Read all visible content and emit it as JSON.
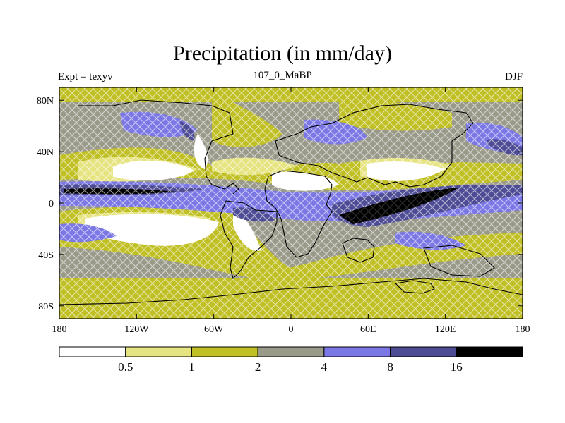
{
  "map": {
    "title": "Precipitation (in mm/day)",
    "left_label": "Expt = texyv",
    "center_label": "107_0_MaBP",
    "right_label": "DJF",
    "lon_labels": [
      "180",
      "120W",
      "60W",
      "0",
      "60E",
      "120E",
      "180"
    ],
    "lat_labels": [
      "80N",
      "40N",
      "0",
      "40S",
      "80S"
    ],
    "lon_values": [
      -180,
      -120,
      -60,
      0,
      60,
      120,
      180
    ],
    "lat_values": [
      80,
      40,
      0,
      -40,
      -80
    ],
    "lat_range": [
      -90,
      90
    ],
    "lon_range": [
      -180,
      180
    ],
    "colorbar": {
      "levels": [
        "0.5",
        "1",
        "2",
        "4",
        "8",
        "16"
      ],
      "colors": [
        "#ffffff",
        "#e6e480",
        "#c0bf24",
        "#9a9a8a",
        "#7b78e6",
        "#4e4c94",
        "#000000"
      ]
    }
  }
}
